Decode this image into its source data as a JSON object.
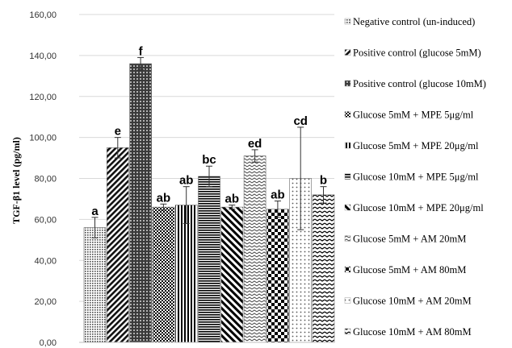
{
  "chart_data": {
    "type": "bar",
    "title": "",
    "xlabel": "",
    "ylabel": "TGF-β1 level (pg/ml)",
    "ylim": [
      0,
      160
    ],
    "yticks": [
      "0,00",
      "20,00",
      "40,00",
      "60,00",
      "80,00",
      "100,00",
      "120,00",
      "140,00",
      "160,00"
    ],
    "grid": true,
    "legend_position": "right",
    "series": [
      {
        "name": "Negative control (un-induced)",
        "value": 56,
        "error": 5,
        "sig": "a",
        "pattern": "dots-fine"
      },
      {
        "name": "Positive control  (glucose 5mM)",
        "value": 95,
        "error": 5,
        "sig": "e",
        "pattern": "diag-wide"
      },
      {
        "name": "Positive control  (glucose 10mM)",
        "value": 136,
        "error": 3,
        "sig": "f",
        "pattern": "dots-grid"
      },
      {
        "name": "Glucose 5mM + MPE 5μg/ml",
        "value": 66,
        "error": 1.5,
        "sig": "ab",
        "pattern": "checker"
      },
      {
        "name": "Glucose 5mM + MPE 20μg/ml",
        "value": 67,
        "error": 9,
        "sig": "ab",
        "pattern": "vlines"
      },
      {
        "name": "Glucose 10mM + MPE 5μg/ml",
        "value": 81,
        "error": 5,
        "sig": "bc",
        "pattern": "hlines"
      },
      {
        "name": "Glucose 10mM + MPE 20μg/ml",
        "value": 66,
        "error": 1,
        "sig": "ab",
        "pattern": "diag-down"
      },
      {
        "name": "Glucose 5mM + AM 20mM",
        "value": 91,
        "error": 3,
        "sig": "ed",
        "pattern": "zigzag"
      },
      {
        "name": "Glucose 5mM + AM 80mM",
        "value": 65,
        "error": 4,
        "sig": "ab",
        "pattern": "checker-big"
      },
      {
        "name": "Glucose 10mM + AM 20mM",
        "value": 80,
        "error": 25,
        "sig": "cd",
        "pattern": "dots-sparse"
      },
      {
        "name": "Glucose 10mM + AM 80mM",
        "value": 72,
        "error": 4,
        "sig": "b",
        "pattern": "wave"
      }
    ]
  }
}
